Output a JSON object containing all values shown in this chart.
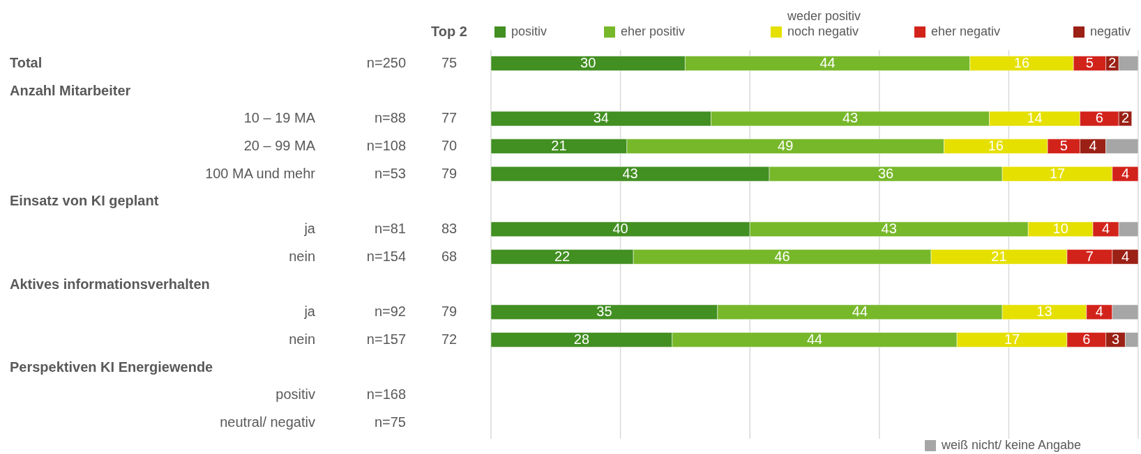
{
  "chart_data": {
    "type": "bar",
    "orientation": "horizontal",
    "stacked": true,
    "categories": [
      null,
      null,
      "10 – 19 MA",
      "20 – 99 MA",
      "100 MA und mehr",
      null,
      "ja",
      "nein",
      null,
      "ja",
      "nein",
      null,
      "positiv",
      "neutral/ negativ"
    ],
    "series": [
      {
        "name": "positiv",
        "color": "#428f22",
        "values": [
          30,
          null,
          34,
          21,
          43,
          null,
          40,
          22,
          null,
          35,
          28,
          null,
          null,
          null
        ],
        "value_labels": [
          "30",
          null,
          "34",
          "21",
          "43",
          null,
          "40",
          "22",
          null,
          "35",
          "28",
          null,
          null,
          null
        ]
      },
      {
        "name": "eher positiv",
        "color": "#77b82a",
        "values": [
          44,
          null,
          43,
          49,
          36,
          null,
          43,
          46,
          null,
          44,
          44,
          null,
          null,
          null
        ],
        "value_labels": [
          "44",
          null,
          "43",
          "49",
          "36",
          null,
          "43",
          "46",
          null,
          "44",
          "44",
          null,
          null,
          null
        ]
      },
      {
        "name": "weder positiv\nnoch negativ",
        "color": "#e5e000",
        "values": [
          16,
          null,
          14,
          16,
          17,
          null,
          10,
          21,
          null,
          13,
          17,
          null,
          null,
          null
        ],
        "value_labels": [
          "16",
          null,
          "14",
          "16",
          "17",
          null,
          "10",
          "21",
          null,
          "13",
          "17",
          null,
          null,
          null
        ]
      },
      {
        "name": "eher negativ",
        "color": "#d2231b",
        "values": [
          5,
          null,
          6,
          5,
          4,
          null,
          4,
          7,
          null,
          4,
          6,
          null,
          null,
          null
        ],
        "value_labels": [
          "5",
          null,
          "6",
          "5",
          "4",
          null,
          "4",
          "7",
          null,
          "4",
          "6",
          null,
          null,
          null
        ]
      },
      {
        "name": "negativ",
        "color": "#9b2015",
        "values": [
          2,
          null,
          2,
          4,
          null,
          null,
          null,
          4,
          null,
          null,
          3,
          null,
          null,
          null
        ],
        "value_labels": [
          "2",
          null,
          "2",
          "4",
          null,
          null,
          null,
          "4",
          null,
          null,
          "3",
          null,
          null,
          null
        ]
      },
      {
        "name": "weiß nicht/ keine Angabe",
        "color": "#a6a6a6",
        "values": [
          3,
          null,
          null,
          5,
          null,
          null,
          3,
          null,
          null,
          4,
          2,
          null,
          null,
          null
        ]
      }
    ],
    "xlim": [
      0,
      100
    ],
    "xticks": [
      {
        "value": 0,
        "label": null
      },
      {
        "value": 20,
        "label": null
      },
      {
        "value": 40,
        "label": null
      },
      {
        "value": 60,
        "label": null
      },
      {
        "value": 80,
        "label": null
      },
      {
        "value": 100,
        "label": null
      }
    ],
    "grid": "x",
    "legend": "top",
    "annotations": [
      "Top 2",
      "Total",
      "n=250",
      "75",
      "Anzahl Mitarbeiter",
      "n=88",
      "77",
      "n=108",
      "70",
      "n=53",
      "79",
      "Einsatz von KI geplant",
      "n=81",
      "83",
      "n=154",
      "68",
      "Aktives informationsverhalten",
      "n=92",
      "79",
      "n=157",
      "72",
      "Perspektiven KI Energiewende",
      "n=168",
      "n=75"
    ]
  }
}
